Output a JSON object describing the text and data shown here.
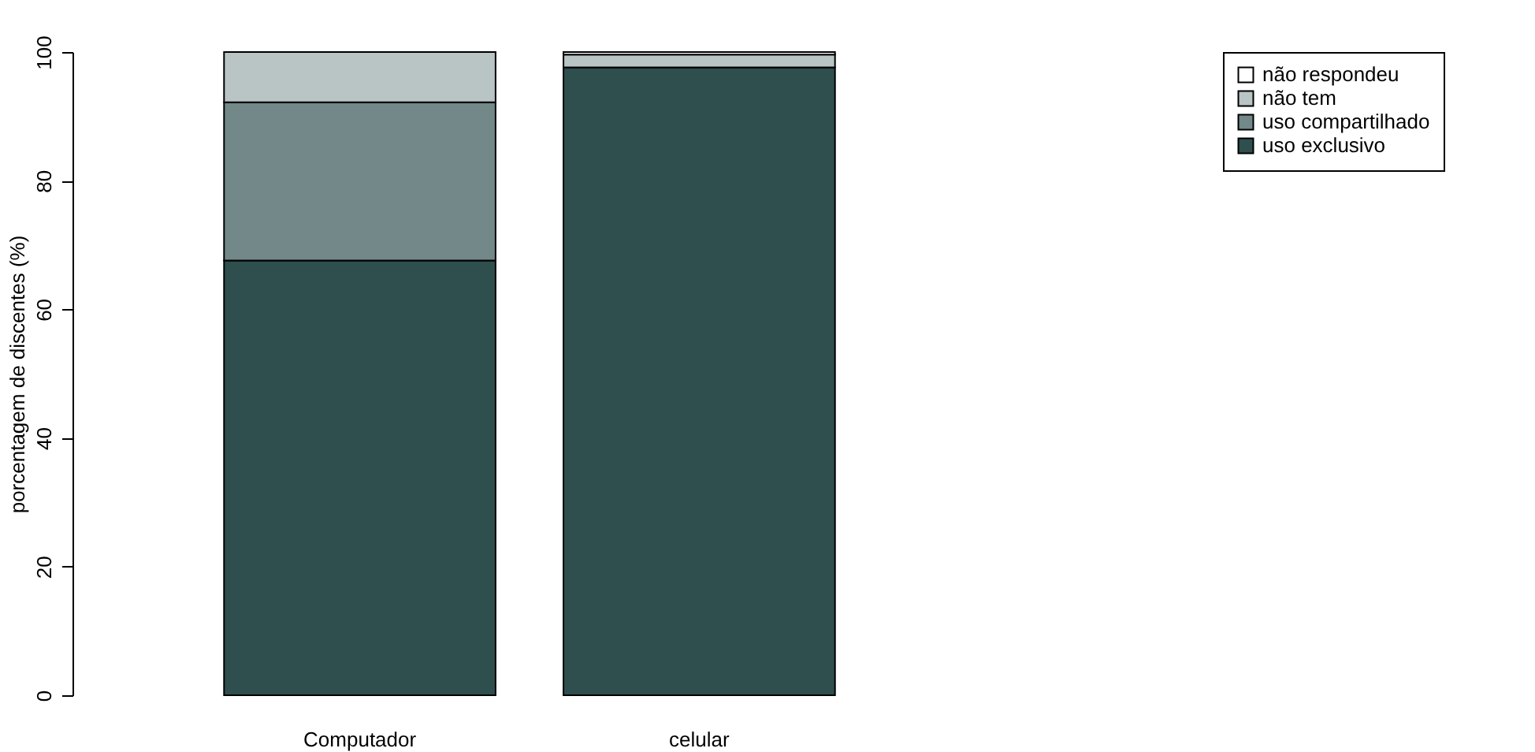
{
  "chart_data": {
    "type": "bar",
    "stacked": true,
    "ylabel": "porcentagem de discentes (%)",
    "categories": [
      "Computador",
      "celular"
    ],
    "series": [
      {
        "name": "uso exclusivo",
        "color": "#2f4f4f",
        "values": [
          67.6,
          97.6
        ]
      },
      {
        "name": "uso compartilhado",
        "color": "#738888",
        "values": [
          24.6,
          0
        ]
      },
      {
        "name": "não tem",
        "color": "#b9c4c4",
        "values": [
          7.8,
          2.0
        ]
      },
      {
        "name": "não respondeu",
        "color": "#ffffff",
        "values": [
          0,
          0.4
        ]
      }
    ],
    "ylim": [
      0,
      100
    ],
    "yticks": [
      0,
      20,
      40,
      60,
      80,
      100
    ],
    "grid": false,
    "legend": "top right"
  }
}
